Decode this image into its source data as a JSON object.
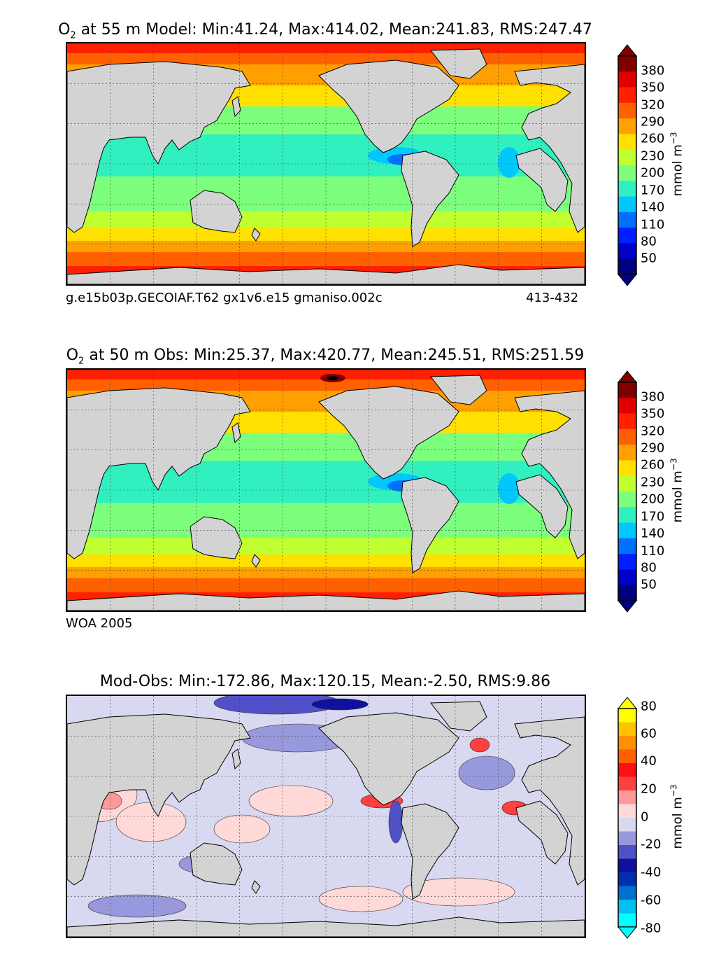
{
  "panels": [
    {
      "title_var": "O",
      "title_sub": "2",
      "title_rest": " at 55 m Model: Min:41.24, Max:414.02, Mean:241.83, RMS:247.47",
      "caption_left": "g.e15b03p.GECOIAF.T62 gx1v6.e15 gmaniso.002c",
      "caption_right": "413-432",
      "unit": "mmol m",
      "unit_exp": "−3",
      "ticks": [
        "380",
        "350",
        "320",
        "290",
        "260",
        "230",
        "200",
        "170",
        "140",
        "110",
        "80",
        "50"
      ]
    },
    {
      "title_var": "O",
      "title_sub": "2",
      "title_rest": " at 50 m Obs: Min:25.37, Max:420.77, Mean:245.51, RMS:251.59",
      "caption_left": "WOA 2005",
      "caption_right": "",
      "unit": "mmol m",
      "unit_exp": "−3",
      "ticks": [
        "380",
        "350",
        "320",
        "290",
        "260",
        "230",
        "200",
        "170",
        "140",
        "110",
        "80",
        "50"
      ]
    },
    {
      "title_var": "",
      "title_sub": "",
      "title_rest": "Mod-Obs: Min:-172.86, Max:120.15, Mean:-2.50, RMS:9.86",
      "caption_left": "",
      "caption_right": "",
      "unit": "mmol m",
      "unit_exp": "−3",
      "ticks": [
        "80",
        "60",
        "40",
        "20",
        "0",
        "-20",
        "-40",
        "-60",
        "-80"
      ]
    }
  ],
  "colors": {
    "land": "#d3d3d3",
    "o2_scale": [
      "#000080",
      "#0000c8",
      "#0020ff",
      "#0070ff",
      "#00c8ff",
      "#30f0c0",
      "#7cff7c",
      "#c0ff30",
      "#ffe000",
      "#ffa000",
      "#ff6000",
      "#ff2000",
      "#e00000",
      "#800000"
    ],
    "diff_scale": [
      "#00ffff",
      "#00c0f0",
      "#0070d0",
      "#0030b0",
      "#1010a0",
      "#5050c8",
      "#9898dc",
      "#d8d8f0",
      "#ffd8d8",
      "#ff9898",
      "#ff4040",
      "#ff1010",
      "#ff6000",
      "#ff9000",
      "#ffc000",
      "#ffff00"
    ]
  }
}
